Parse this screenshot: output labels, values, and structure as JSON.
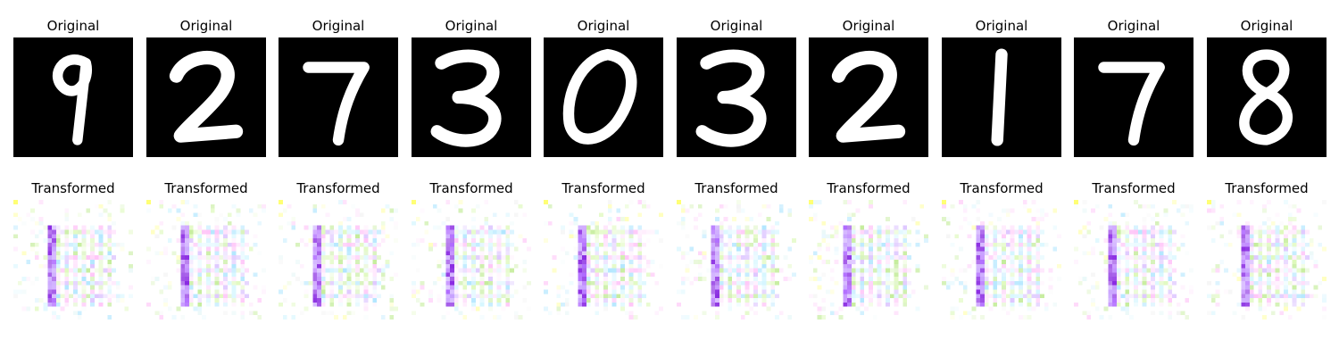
{
  "figure": {
    "columns": 10,
    "rows": [
      {
        "kind": "original",
        "background": "#000000",
        "stroke_color": "#ffffff",
        "titles": [
          "Original",
          "Original",
          "Original",
          "Original",
          "Original",
          "Original",
          "Original",
          "Original",
          "Original",
          "Original"
        ],
        "digits": [
          "9",
          "2",
          "7",
          "3",
          "0",
          "3",
          "2",
          "1",
          "7",
          "8"
        ]
      },
      {
        "kind": "transformed",
        "background": "#ffffff",
        "titles": [
          "Transformed",
          "Transformed",
          "Transformed",
          "Transformed",
          "Transformed",
          "Transformed",
          "Transformed",
          "Transformed",
          "Transformed",
          "Transformed"
        ],
        "palette": [
          "#8a2be2",
          "#b06bff",
          "#c8a2ff",
          "#7fd6ff",
          "#b8f0ff",
          "#c6f58a",
          "#9ee05a",
          "#ff9ff3",
          "#ffd6fb",
          "#ffff66",
          "#e8e8e8",
          "#d0f0f0"
        ]
      }
    ]
  }
}
